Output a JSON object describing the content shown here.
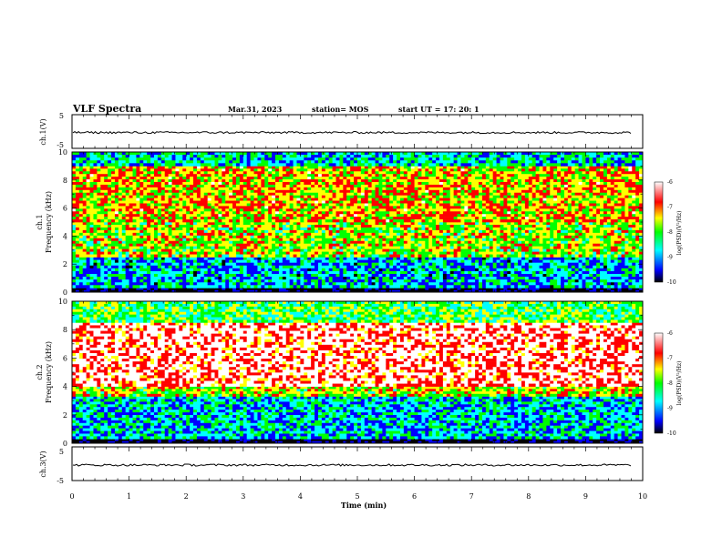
{
  "header": {
    "title": "VLF Spectra",
    "date": "Mar.31, 2023",
    "station": "station= MOS",
    "start": "start  UT  =   17: 20: 1"
  },
  "colorbar_labels": {
    "top_title": "log(PSD)(V²/Hz)",
    "bottom_title": "log(PSD)(V²/Hz)"
  },
  "colors": {
    "background": "#ffffff",
    "axes": "#000000",
    "colormap": [
      "#000000",
      "#0000ff",
      "#00ffff",
      "#00ff00",
      "#ffff00",
      "#ff0000",
      "#ffffff"
    ]
  },
  "chart_data": [
    {
      "id": "ch1-waveform",
      "type": "line",
      "ylabel": "ch.1(V)",
      "ylim": [
        -5,
        5
      ],
      "yticks": [
        "5",
        "-5"
      ],
      "xlim": [
        0,
        10
      ],
      "series": [
        {
          "values_description_free": true,
          "level": -0.3
        }
      ]
    },
    {
      "id": "ch1-spectrogram",
      "type": "heatmap",
      "ylabel": "ch.1\nFrequency (kHz)",
      "ylim": [
        0,
        10
      ],
      "yticks": [
        "0",
        "2",
        "4",
        "6",
        "8",
        "10"
      ],
      "xlim": [
        0,
        10
      ],
      "colorbar": {
        "range": [
          -10,
          -6
        ],
        "ticks": [
          "-6",
          "-7",
          "-8",
          "-9",
          "-10"
        ],
        "label": "log(PSD)(V²/Hz)"
      },
      "bands_khz": [
        {
          "from": 0.0,
          "to": 0.3,
          "level": -10
        },
        {
          "from": 0.3,
          "to": 2.5,
          "level": -8.8
        },
        {
          "from": 2.5,
          "to": 5.0,
          "level": -7.6
        },
        {
          "from": 5.0,
          "to": 9.0,
          "level": -7.2
        },
        {
          "from": 9.0,
          "to": 10.0,
          "level": -8.6
        }
      ]
    },
    {
      "id": "ch2-spectrogram",
      "type": "heatmap",
      "ylabel": "ch.2\nFrequency (kHz)",
      "ylim": [
        0,
        10
      ],
      "yticks": [
        "0",
        "2",
        "4",
        "6",
        "8",
        "10"
      ],
      "xlim": [
        0,
        10
      ],
      "colorbar": {
        "range": [
          -10,
          -6
        ],
        "ticks": [
          "-6",
          "-7",
          "-8",
          "-9",
          "-10"
        ],
        "label": "log(PSD)(V²/Hz)"
      },
      "bands_khz": [
        {
          "from": 0.0,
          "to": 0.3,
          "level": -10
        },
        {
          "from": 0.3,
          "to": 3.3,
          "level": -8.7
        },
        {
          "from": 3.3,
          "to": 4.0,
          "level": -7.5
        },
        {
          "from": 4.0,
          "to": 8.5,
          "level": -6.3
        },
        {
          "from": 8.5,
          "to": 10.0,
          "level": -8.0
        }
      ]
    },
    {
      "id": "ch3-waveform",
      "type": "line",
      "ylabel": "ch.3(V)",
      "ylim": [
        -5,
        5
      ],
      "yticks": [
        "5",
        "-5"
      ],
      "xlim": [
        0,
        10
      ],
      "xlabel": "Time  (min)",
      "xticks": [
        "0",
        "1",
        "2",
        "3",
        "4",
        "5",
        "6",
        "7",
        "8",
        "9",
        "10"
      ],
      "series": [
        {
          "level": -0.4
        }
      ]
    }
  ]
}
